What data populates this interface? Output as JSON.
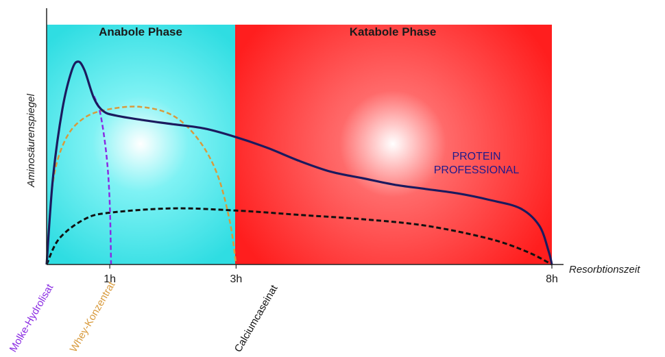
{
  "chart_data": {
    "type": "line",
    "xlabel": "Resorbtionszeit",
    "ylabel": "Aminosäurenspiegel",
    "xlim": [
      0,
      8
    ],
    "ylim": [
      0,
      100
    ],
    "x_ticks": [
      {
        "x": 1,
        "label": "1h"
      },
      {
        "x": 3,
        "label": "3h"
      },
      {
        "x": 8,
        "label": "8h"
      }
    ],
    "phases": [
      {
        "label": "Anabole Phase",
        "start": 0,
        "end": 3,
        "color": "#3fe6ea"
      },
      {
        "label": "Katabole Phase",
        "start": 3,
        "end": 8,
        "color": "#ff2a2a"
      }
    ],
    "annotation": [
      "PROTEIN",
      "PROFESSIONAL"
    ],
    "series": [
      {
        "name": "",
        "style": "solid",
        "color": "#1b1a5e",
        "points": [
          [
            0,
            0
          ],
          [
            0.1,
            40
          ],
          [
            0.25,
            72
          ],
          [
            0.4,
            90
          ],
          [
            0.5,
            94
          ],
          [
            0.6,
            90
          ],
          [
            0.75,
            77
          ],
          [
            0.9,
            71
          ],
          [
            1.1,
            69
          ],
          [
            1.5,
            67
          ],
          [
            2.0,
            65
          ],
          [
            2.5,
            63
          ],
          [
            3.0,
            59
          ],
          [
            3.5,
            54
          ],
          [
            4.0,
            48
          ],
          [
            4.5,
            43
          ],
          [
            5.0,
            40
          ],
          [
            5.5,
            37
          ],
          [
            6.0,
            35
          ],
          [
            6.5,
            33
          ],
          [
            7.0,
            30
          ],
          [
            7.5,
            26
          ],
          [
            7.8,
            18
          ],
          [
            7.95,
            6
          ],
          [
            8.0,
            0
          ]
        ]
      },
      {
        "name": "Molke-Hydrolisat",
        "style": "dashed",
        "color": "#8a2be2",
        "points": [
          [
            0.75,
            78
          ],
          [
            0.85,
            70
          ],
          [
            0.95,
            50
          ],
          [
            1.0,
            28
          ],
          [
            1.02,
            0
          ]
        ]
      },
      {
        "name": "Whey-Konzentrat",
        "style": "dashed",
        "color": "#d89a3c",
        "points": [
          [
            0,
            0
          ],
          [
            0.1,
            38
          ],
          [
            0.3,
            58
          ],
          [
            0.6,
            68
          ],
          [
            1.0,
            72
          ],
          [
            1.5,
            73
          ],
          [
            2.0,
            69
          ],
          [
            2.4,
            58
          ],
          [
            2.7,
            42
          ],
          [
            2.9,
            20
          ],
          [
            3.0,
            0
          ]
        ]
      },
      {
        "name": "Calciumcaseinat",
        "style": "dashed",
        "color": "#111111",
        "points": [
          [
            0,
            0
          ],
          [
            0.2,
            12
          ],
          [
            0.6,
            21
          ],
          [
            1.0,
            24
          ],
          [
            2.0,
            26
          ],
          [
            3.0,
            25
          ],
          [
            4.0,
            23
          ],
          [
            5.0,
            21
          ],
          [
            6.0,
            18
          ],
          [
            7.0,
            12
          ],
          [
            7.6,
            6
          ],
          [
            8.0,
            0
          ]
        ]
      }
    ]
  }
}
